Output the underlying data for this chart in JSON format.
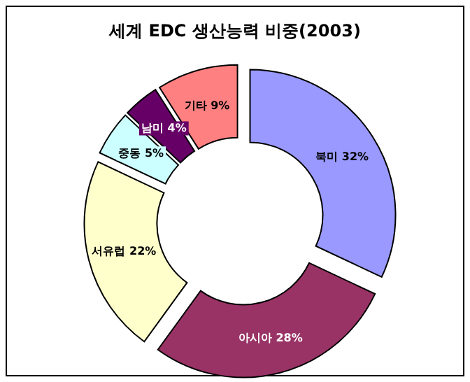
{
  "chart_data": {
    "type": "donut",
    "title": "세계 EDC 생산능력 비중(2003)",
    "categories": [
      "북미",
      "아시아",
      "서유럽",
      "중동",
      "남미",
      "기타"
    ],
    "values": [
      32,
      28,
      22,
      5,
      4,
      9
    ],
    "colors": [
      "#9999ff",
      "#993366",
      "#ffffcc",
      "#ccffff",
      "#660066",
      "#ff8080"
    ],
    "value_labels": [
      "32%",
      "28%",
      "22%",
      "5%",
      "4%",
      "9%"
    ]
  }
}
